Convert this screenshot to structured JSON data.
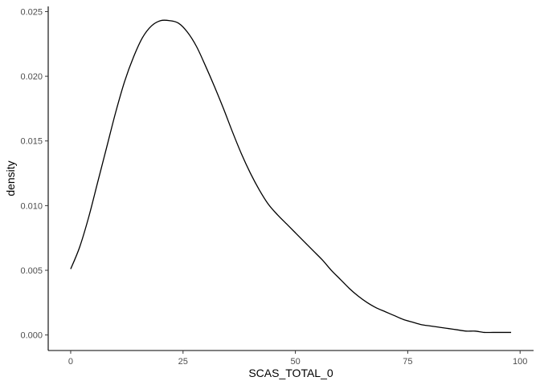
{
  "chart_data": {
    "type": "line",
    "title": "",
    "xlabel": "SCAS_TOTAL_0",
    "ylabel": "density",
    "xlim": [
      -5,
      103
    ],
    "ylim": [
      -0.0012,
      0.0254
    ],
    "x_ticks": [
      0,
      25,
      50,
      75,
      100
    ],
    "x_tick_labels": [
      "0",
      "25",
      "50",
      "75",
      "100"
    ],
    "y_ticks": [
      0.0,
      0.005,
      0.01,
      0.015,
      0.02,
      0.025
    ],
    "y_tick_labels": [
      "0.000",
      "0.005",
      "0.010",
      "0.015",
      "0.020",
      "0.025"
    ],
    "grid": false,
    "legend": "none",
    "line_color": "#000000",
    "series": [
      {
        "x": [
          0,
          2,
          4,
          6,
          8,
          10,
          12,
          14,
          16,
          18,
          20,
          22,
          24,
          26,
          28,
          30,
          32,
          34,
          36,
          38,
          40,
          42,
          44,
          46,
          48,
          50,
          52,
          54,
          56,
          58,
          60,
          62,
          64,
          66,
          68,
          70,
          72,
          74,
          76,
          78,
          80,
          82,
          84,
          86,
          88,
          90,
          92,
          94,
          96,
          98
        ],
        "y": [
          0.0051,
          0.0068,
          0.0091,
          0.0118,
          0.0145,
          0.0172,
          0.0196,
          0.0215,
          0.023,
          0.0239,
          0.0243,
          0.0243,
          0.0241,
          0.0234,
          0.0223,
          0.0208,
          0.0192,
          0.0175,
          0.0157,
          0.014,
          0.0125,
          0.0112,
          0.0101,
          0.0093,
          0.0086,
          0.0079,
          0.0072,
          0.0065,
          0.0058,
          0.005,
          0.0043,
          0.0036,
          0.003,
          0.0025,
          0.0021,
          0.0018,
          0.0015,
          0.0012,
          0.001,
          0.0008,
          0.0007,
          0.0006,
          0.0005,
          0.0004,
          0.0003,
          0.0003,
          0.0002,
          0.0002,
          0.0002,
          0.0002
        ]
      }
    ]
  }
}
